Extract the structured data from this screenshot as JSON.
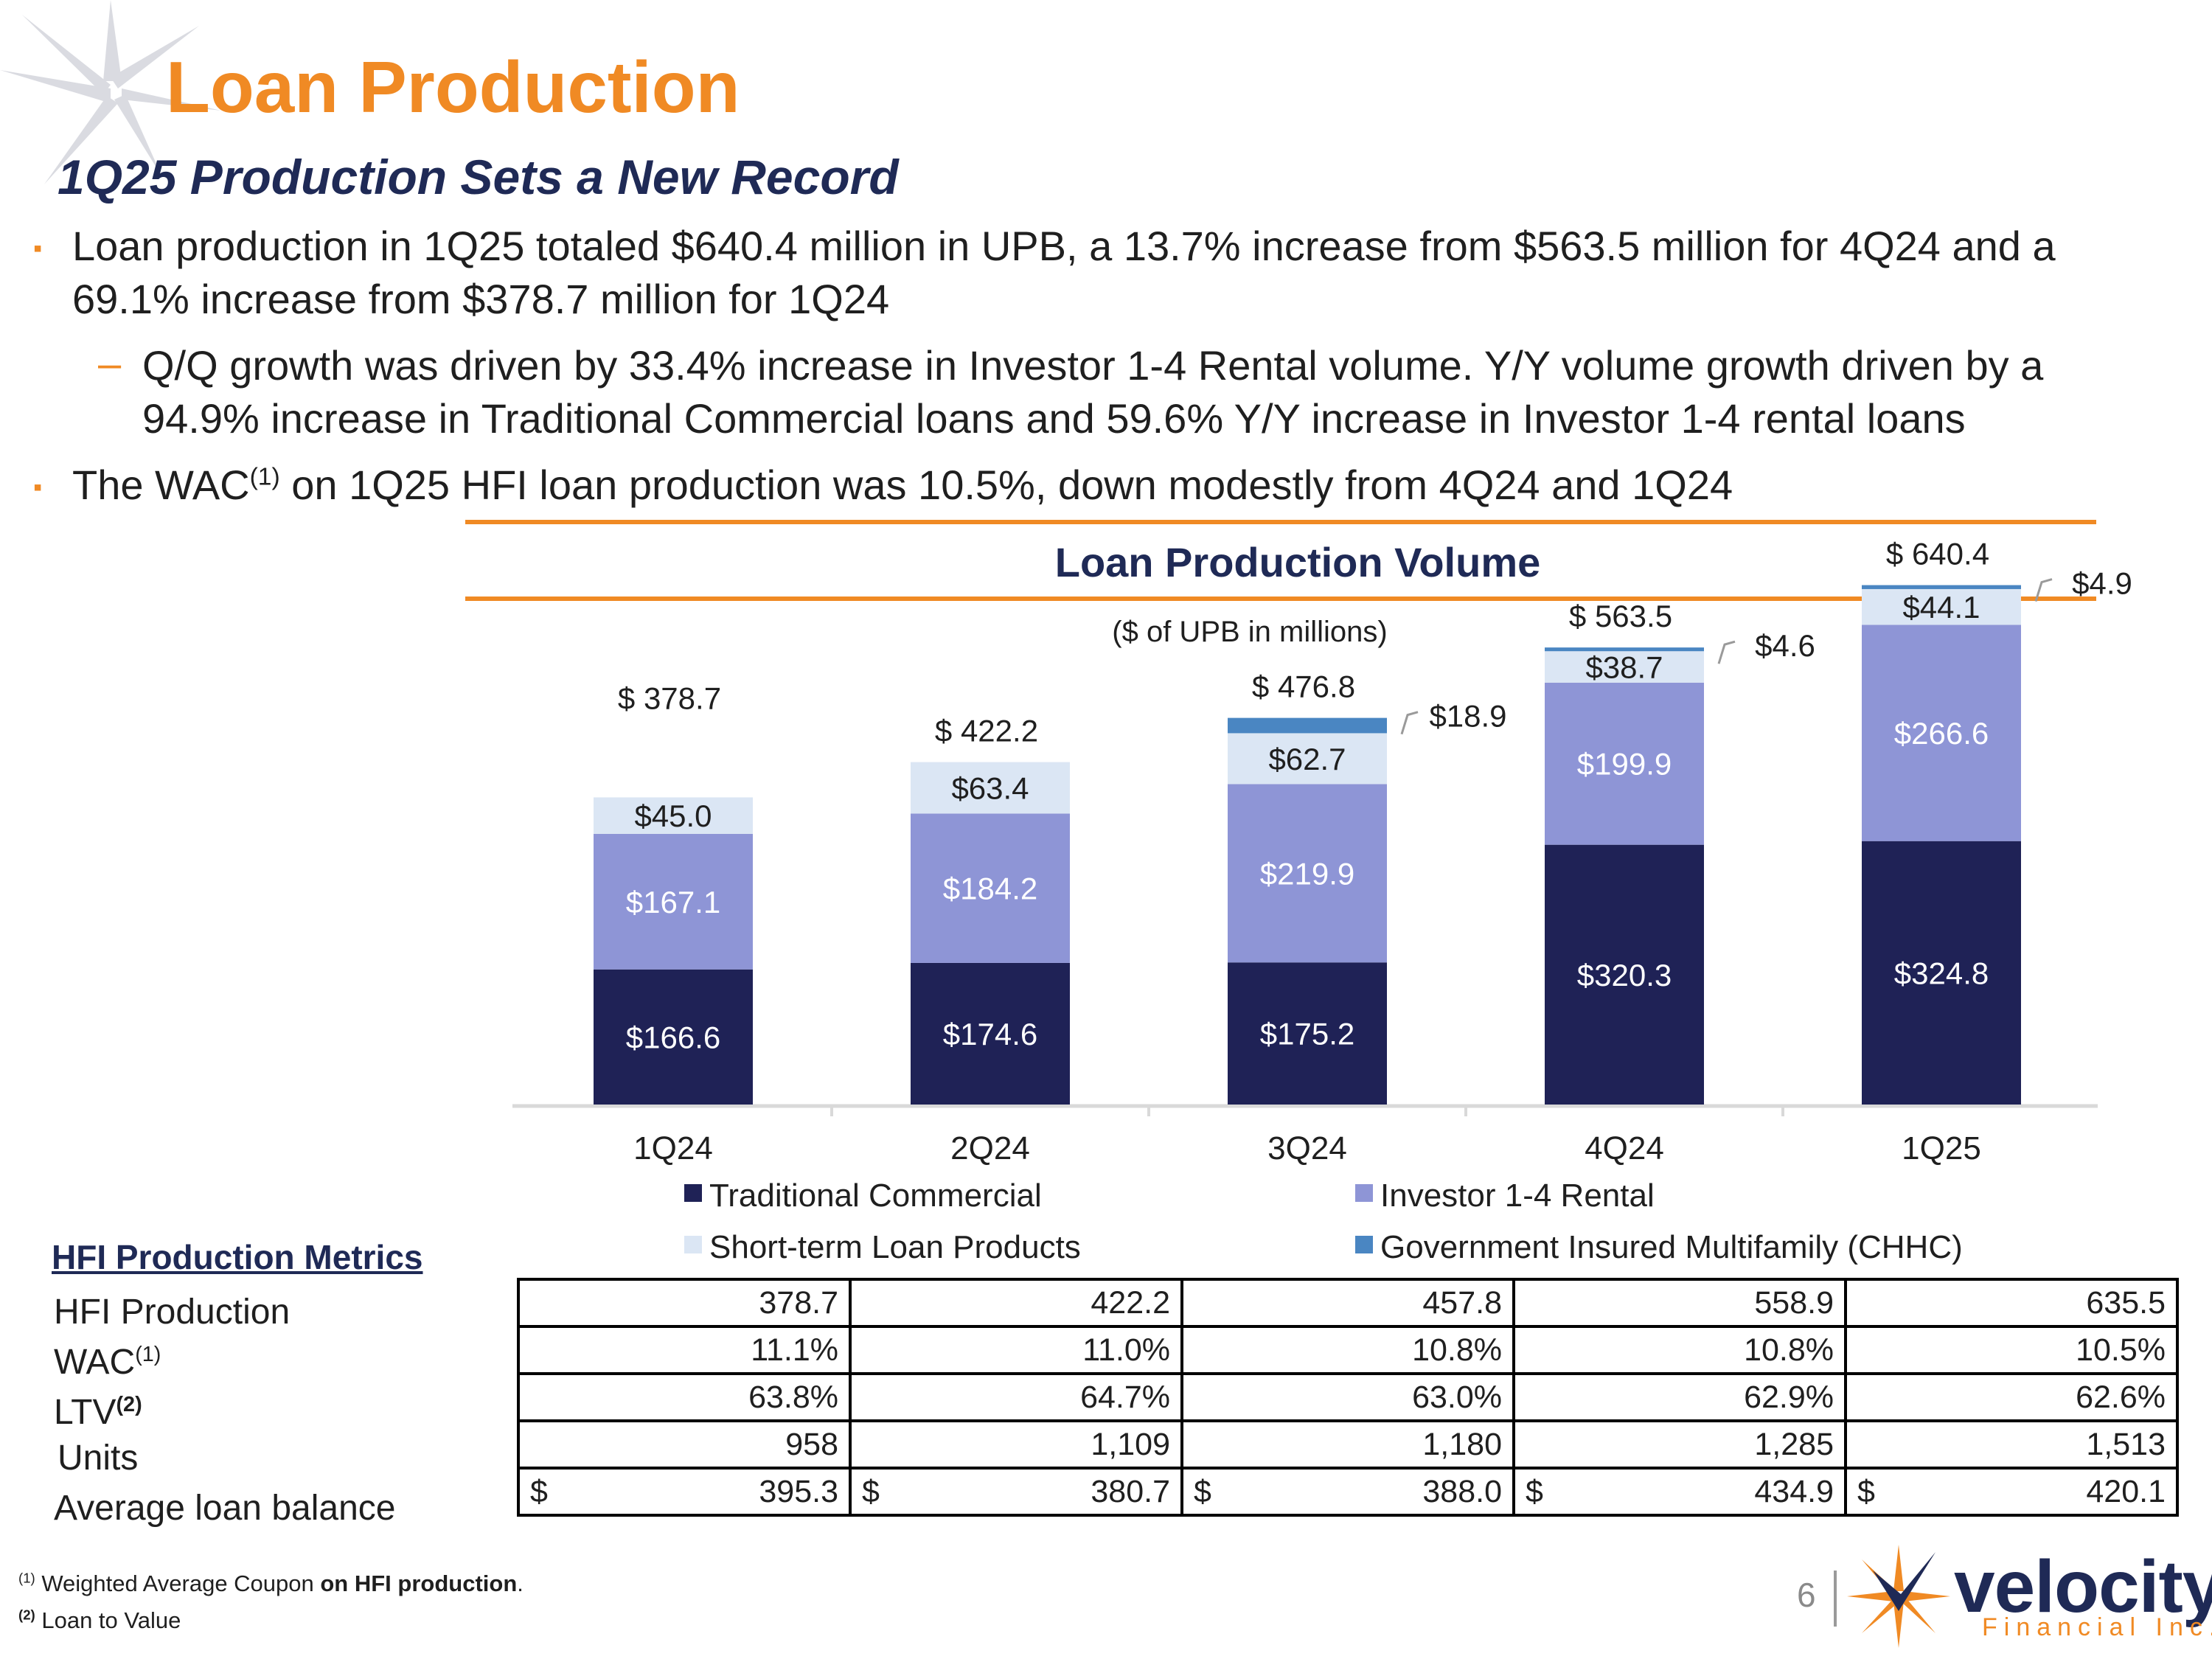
{
  "header": {
    "title": "Loan Production",
    "subtitle": "1Q25 Production Sets a New Record"
  },
  "bullets": {
    "b1_line1": "Loan production in 1Q25 totaled $640.4 million in UPB, a 13.7% increase from $563.5 million for 4Q24 and a",
    "b1_line2": "69.1% increase from $378.7 million for 1Q24",
    "sub_line1": "Q/Q growth was driven by 33.4% increase in Investor 1-4 Rental volume. Y/Y volume growth driven by a",
    "sub_line2": "94.9% increase in Traditional Commercial loans and 59.6% Y/Y increase in Investor 1-4 rental loans",
    "b2_pre": "The WAC",
    "b2_sup": "(1)",
    "b2_post": " on 1Q25 HFI loan production was 10.5%, down modestly from 4Q24 and 1Q24",
    "marker": "▪",
    "dash": "–"
  },
  "chart_data": {
    "type": "bar",
    "stacked": true,
    "title": "Loan Production Volume",
    "subtitle": "($ of UPB in millions)",
    "categories": [
      "1Q24",
      "2Q24",
      "3Q24",
      "4Q24",
      "1Q25"
    ],
    "series": [
      {
        "name": "Traditional Commercial",
        "color": "#1f2256",
        "values": [
          166.6,
          174.6,
          175.2,
          320.3,
          324.8
        ],
        "labels": [
          "$166.6",
          "$174.6",
          "$175.2",
          "$320.3",
          "$324.8"
        ]
      },
      {
        "name": "Investor 1-4 Rental",
        "color": "#8e95d6",
        "values": [
          167.1,
          184.2,
          219.9,
          199.9,
          266.6
        ],
        "labels": [
          "$167.1",
          "$184.2",
          "$219.9",
          "$199.9",
          "$266.6"
        ]
      },
      {
        "name": "Short-term Loan Products",
        "color": "#dbe6f4",
        "values": [
          45.0,
          63.4,
          62.7,
          38.7,
          44.1
        ],
        "labels": [
          "$45.0",
          "$63.4",
          "$62.7",
          "$38.7",
          "$44.1"
        ]
      },
      {
        "name": "Government Insured Multifamily (CHHC)",
        "color": "#4a86c2",
        "values": [
          0,
          0,
          18.9,
          4.6,
          4.9
        ],
        "labels": [
          "",
          "",
          "$18.9",
          "$4.6",
          "$4.9"
        ]
      }
    ],
    "totals": [
      378.7,
      422.2,
      476.8,
      563.5,
      640.4
    ],
    "total_labels": [
      "$ 378.7",
      "$ 422.2",
      "$ 476.8",
      "$ 563.5",
      "$ 640.4"
    ],
    "ylim": [
      0,
      680
    ],
    "xlabel": "",
    "ylabel": "",
    "legend": "bottom",
    "grid": false
  },
  "metrics": {
    "heading": "HFI Production Metrics",
    "rows": [
      {
        "label": "HFI Production",
        "sup": "",
        "values": [
          "378.7",
          "422.2",
          "457.8",
          "558.9",
          "635.5"
        ]
      },
      {
        "label": "WAC",
        "sup": "(1)",
        "values": [
          "11.1%",
          "11.0%",
          "10.8%",
          "10.8%",
          "10.5%"
        ]
      },
      {
        "label": "LTV",
        "sup": "(2)",
        "values": [
          "63.8%",
          "64.7%",
          "63.0%",
          "62.9%",
          "62.6%"
        ]
      },
      {
        "label": "Units",
        "sup": "",
        "values": [
          "958",
          "1,109",
          "1,180",
          "1,285",
          "1,513"
        ]
      },
      {
        "label": "Average loan balance",
        "sup": "",
        "currency": "$",
        "values": [
          "395.3",
          "380.7",
          "388.0",
          "434.9",
          "420.1"
        ]
      }
    ]
  },
  "footnotes": {
    "f1_sup": "(1)",
    "f1_text": " Weighted Average Coupon ",
    "f1_bold": "on HFI production",
    "f1_end": ".",
    "f2_sup": "(2)",
    "f2_text": " Loan to Value"
  },
  "footer": {
    "page_number": "6",
    "brand_name": "velocity",
    "brand_sub": "Financial Inc."
  },
  "colors": {
    "accent": "#f08a24",
    "navy": "#1f2a56"
  }
}
